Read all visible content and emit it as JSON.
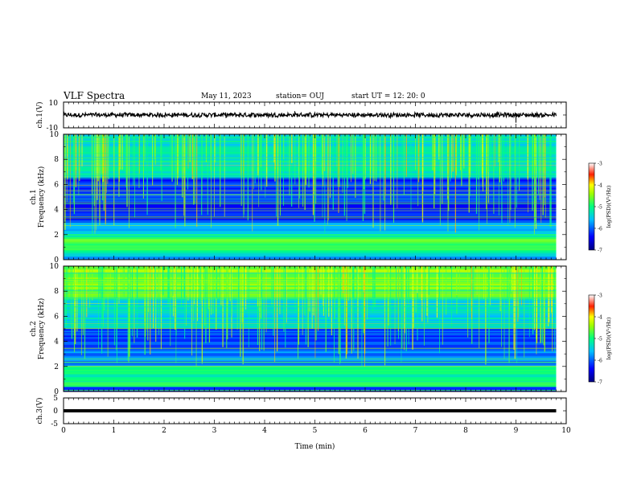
{
  "header": {
    "title": "VLF Spectra",
    "date": "May 11, 2023",
    "station": "station= OUJ",
    "start": "start UT =   12: 20: 0"
  },
  "chart_data": [
    {
      "type": "line",
      "name": "ch1-waveform",
      "ylabel": "ch.1(V)",
      "ylim": [
        -10,
        10
      ],
      "yticks": [
        "10",
        "-10"
      ],
      "description_values": {
        "baseline_v": 0,
        "amplitude_v": 2
      },
      "xlim": [
        0,
        10
      ]
    },
    {
      "type": "heatmap",
      "name": "ch1-spectrogram",
      "ylabel": "ch.1\nFrequency (kHz)",
      "ylabel_lines": [
        "ch.1",
        "Frequency (kHz)"
      ],
      "ylim": [
        0,
        10
      ],
      "yticks": [
        "0",
        "2",
        "4",
        "6",
        "8",
        "10"
      ],
      "xlim": [
        0,
        9.8
      ],
      "colorbar": {
        "label": "log(PSD)(V²/Hz)",
        "range": [
          -7,
          -3
        ],
        "ticks": [
          "-3",
          "-4",
          "-5",
          "-6",
          "-7"
        ]
      }
    },
    {
      "type": "heatmap",
      "name": "ch2-spectrogram",
      "ylabel_lines": [
        "ch.2",
        "Frequency (kHz)"
      ],
      "ylim": [
        0,
        10
      ],
      "yticks": [
        "0",
        "2",
        "4",
        "6",
        "8",
        "10"
      ],
      "xlim": [
        0,
        9.8
      ],
      "colorbar": {
        "label": "log(PSD)(V²/Hz)",
        "range": [
          -7,
          -3
        ],
        "ticks": [
          "-3",
          "-4",
          "-5",
          "-6",
          "-7"
        ]
      }
    },
    {
      "type": "line",
      "name": "ch3-waveform",
      "ylabel": "ch.3(V)",
      "ylim": [
        -5,
        5
      ],
      "yticks": [
        "5",
        "0",
        "-5"
      ],
      "description_values": {
        "baseline_v": 0
      },
      "xlim": [
        0,
        10
      ]
    }
  ],
  "xaxis": {
    "label": "Time (min)",
    "ticks": [
      0,
      1,
      2,
      3,
      4,
      5,
      6,
      7,
      8,
      9,
      10
    ]
  },
  "colors": {
    "cmap": [
      "#000090",
      "#0000ff",
      "#00a0ff",
      "#00ffff",
      "#00ff60",
      "#a0ff00",
      "#ffff00",
      "#ff8000",
      "#ff0000",
      "#ffffff"
    ]
  }
}
